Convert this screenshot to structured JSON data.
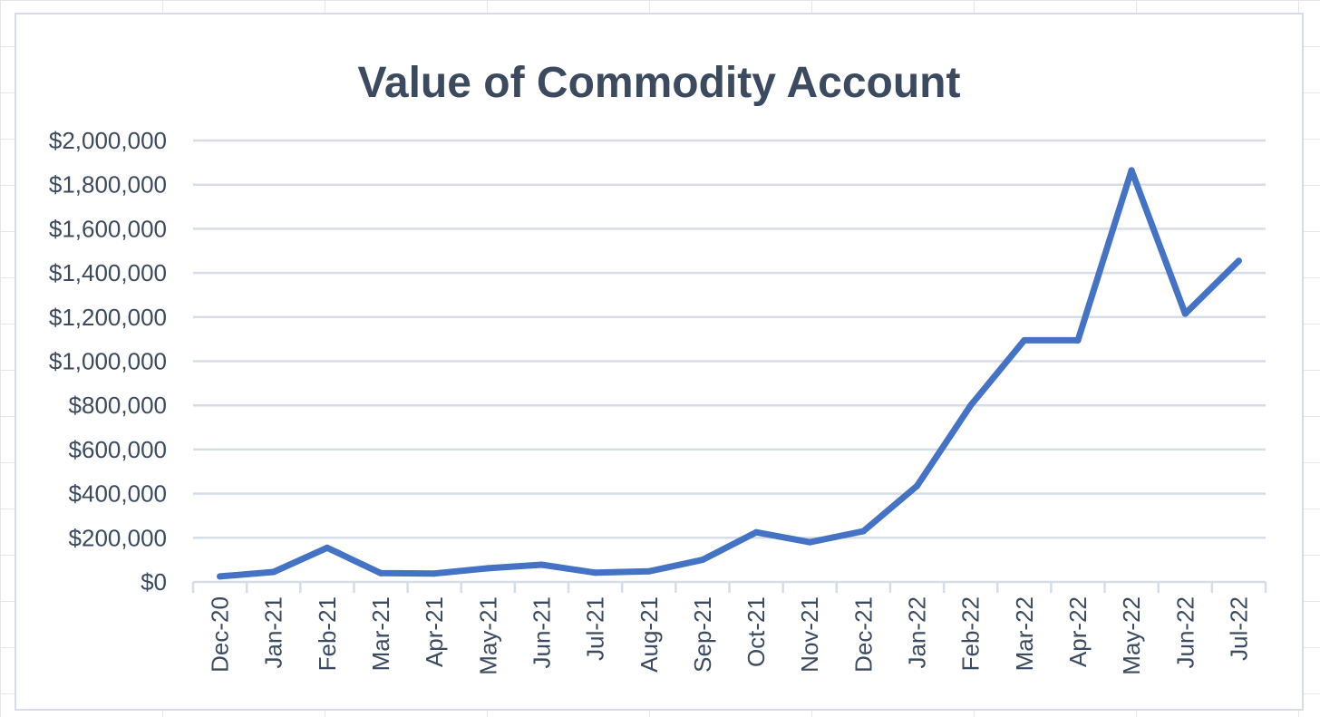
{
  "chart_data": {
    "type": "line",
    "title": "Value of Commodity Account",
    "xlabel": "",
    "ylabel": "",
    "categories": [
      "Dec-20",
      "Jan-21",
      "Feb-21",
      "Mar-21",
      "Apr-21",
      "May-21",
      "Jun-21",
      "Jul-21",
      "Aug-21",
      "Sep-21",
      "Oct-21",
      "Nov-21",
      "Dec-21",
      "Jan-22",
      "Feb-22",
      "Mar-22",
      "Apr-22",
      "May-22",
      "Jun-22",
      "Jul-22"
    ],
    "series": [
      {
        "values": [
          25000,
          45000,
          155000,
          40000,
          38000,
          62000,
          78000,
          42000,
          48000,
          100000,
          225000,
          180000,
          230000,
          435000,
          800000,
          1095000,
          1095000,
          1865000,
          1215000,
          1455000
        ]
      }
    ],
    "ylim": [
      0,
      2000000
    ],
    "yticks": [
      "$0",
      "$200,000",
      "$400,000",
      "$600,000",
      "$800,000",
      "$1,000,000",
      "$1,200,000",
      "$1,400,000",
      "$1,600,000",
      "$1,800,000",
      "$2,000,000"
    ],
    "grid": "horizontal",
    "legend": "none",
    "line_color": "#4472c4",
    "grid_color": "#d6dde6",
    "text_color": "#3b4a5e"
  }
}
